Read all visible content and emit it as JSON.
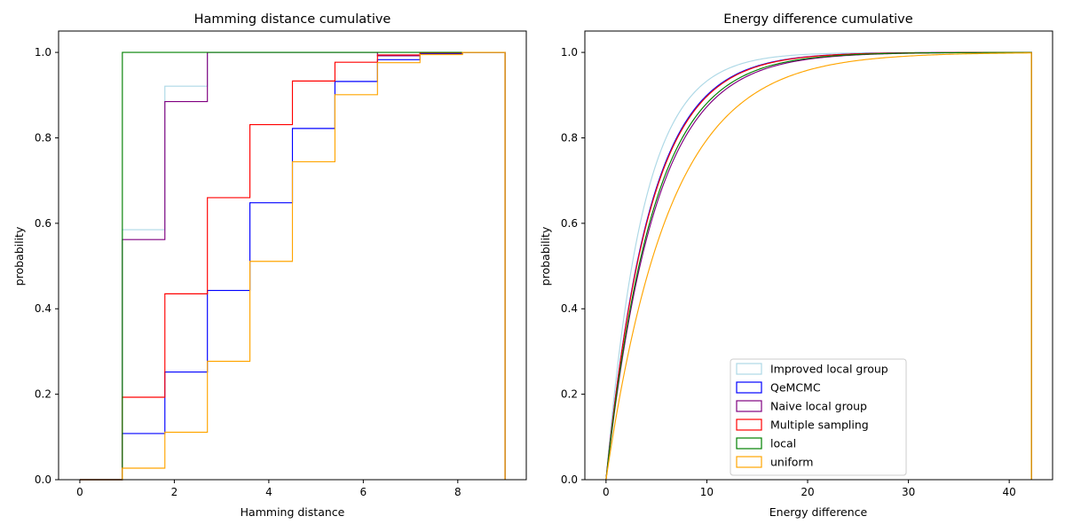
{
  "chart_data": [
    {
      "type": "line",
      "subtype": "cumulative-step-histogram",
      "title": "Hamming distance cumulative",
      "xlabel": "Hamming distance",
      "ylabel": "probability",
      "xlim": [
        -0.45,
        9.45
      ],
      "ylim": [
        0,
        1.05
      ],
      "xticks": [
        0,
        2,
        4,
        6,
        8
      ],
      "yticks": [
        0.0,
        0.2,
        0.4,
        0.6,
        0.8,
        1.0
      ],
      "xtick_labels": [
        "0",
        "2",
        "4",
        "6",
        "8"
      ],
      "ytick_labels": [
        "0.0",
        "0.2",
        "0.4",
        "0.6",
        "0.8",
        "1.0"
      ],
      "bin_edges": [
        0,
        0.9,
        1.8,
        2.7,
        3.6,
        4.5,
        5.4,
        6.3,
        7.2,
        8.1,
        9.0
      ],
      "series": [
        {
          "name": "Improved local group",
          "color": "#add8e6",
          "values": [
            0,
            0.585,
            0.921,
            1.0,
            1.0,
            1.0,
            1.0,
            1.0,
            1.0,
            1.0
          ]
        },
        {
          "name": "QeMCMC",
          "color": "#0000ff",
          "values": [
            0,
            0.108,
            0.252,
            0.443,
            0.648,
            0.822,
            0.932,
            0.983,
            0.997,
            1.0
          ]
        },
        {
          "name": "Naive local group",
          "color": "#800080",
          "values": [
            0,
            0.562,
            0.885,
            1.0,
            1.0,
            1.0,
            1.0,
            0.992,
            1.0,
            1.0
          ]
        },
        {
          "name": "Multiple sampling",
          "color": "#ff0000",
          "values": [
            0,
            0.193,
            0.435,
            0.66,
            0.831,
            0.933,
            0.977,
            0.994,
            0.999,
            1.0
          ]
        },
        {
          "name": "local",
          "color": "#008000",
          "values": [
            0,
            1.0,
            1.0,
            1.0,
            1.0,
            1.0,
            1.0,
            1.0,
            1.0,
            1.0
          ]
        },
        {
          "name": "uniform",
          "color": "#ffa500",
          "values": [
            0,
            0.027,
            0.111,
            0.277,
            0.511,
            0.744,
            0.901,
            0.976,
            0.995,
            1.0
          ]
        }
      ]
    },
    {
      "type": "line",
      "subtype": "cumulative-step-histogram",
      "title": "Energy difference cumulative",
      "xlabel": "Energy difference",
      "ylabel": "probability",
      "xlim": [
        -2.1,
        44.3
      ],
      "ylim": [
        0,
        1.05
      ],
      "xticks": [
        0,
        10,
        20,
        30,
        40
      ],
      "yticks": [
        0.0,
        0.2,
        0.4,
        0.6,
        0.8,
        1.0
      ],
      "xtick_labels": [
        "0",
        "10",
        "20",
        "30",
        "40"
      ],
      "ytick_labels": [
        "0.0",
        "0.2",
        "0.4",
        "0.6",
        "0.8",
        "1.0"
      ],
      "x_max": 42.2,
      "legend_location": "lower-center",
      "series": [
        {
          "name": "Improved local group",
          "color": "#add8e6",
          "scale": 3.7
        },
        {
          "name": "QeMCMC",
          "color": "#0000ff",
          "scale": 4.35
        },
        {
          "name": "Naive local group",
          "color": "#800080",
          "scale": 4.85
        },
        {
          "name": "Multiple sampling",
          "color": "#ff0000",
          "scale": 4.4
        },
        {
          "name": "local",
          "color": "#008000",
          "scale": 4.7
        },
        {
          "name": "uniform",
          "color": "#ffa500",
          "scale": 6.3
        }
      ]
    }
  ]
}
